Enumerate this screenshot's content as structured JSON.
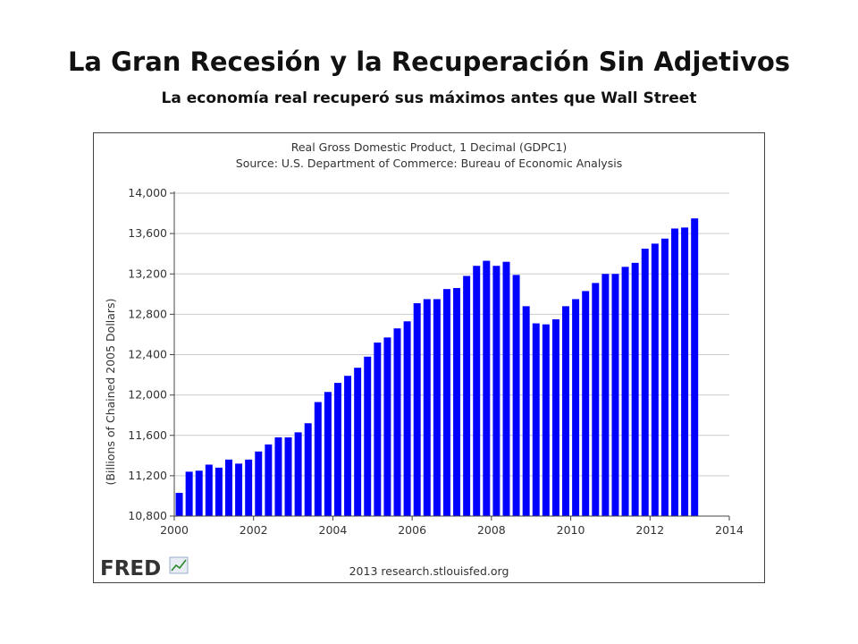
{
  "slide": {
    "title": "La Gran Recesión y la Recuperación Sin Adjetivos",
    "subtitle": "La economía real recuperó sus máximos antes que Wall Street"
  },
  "chart_data": {
    "type": "bar",
    "title": "Real Gross Domestic Product, 1 Decimal (GDPC1)",
    "subtitle": "Source: U.S. Department of Commerce: Bureau of Economic Analysis",
    "ylabel": "(Billions of Chained 2005 Dollars)",
    "xlabel": "",
    "ylim": [
      10800,
      14000
    ],
    "xlim": [
      2000,
      2014
    ],
    "yticks": [
      "10,800",
      "11,200",
      "11,600",
      "12,000",
      "12,400",
      "12,800",
      "13,200",
      "13,600",
      "14,000"
    ],
    "xticks": [
      "2000",
      "2002",
      "2004",
      "2006",
      "2008",
      "2010",
      "2012",
      "2014"
    ],
    "grid": true,
    "bar_color": "#0000ff",
    "categories": [
      "2000-Q1",
      "2000-Q2",
      "2000-Q3",
      "2000-Q4",
      "2001-Q1",
      "2001-Q2",
      "2001-Q3",
      "2001-Q4",
      "2002-Q1",
      "2002-Q2",
      "2002-Q3",
      "2002-Q4",
      "2003-Q1",
      "2003-Q2",
      "2003-Q3",
      "2003-Q4",
      "2004-Q1",
      "2004-Q2",
      "2004-Q3",
      "2004-Q4",
      "2005-Q1",
      "2005-Q2",
      "2005-Q3",
      "2005-Q4",
      "2006-Q1",
      "2006-Q2",
      "2006-Q3",
      "2006-Q4",
      "2007-Q1",
      "2007-Q2",
      "2007-Q3",
      "2007-Q4",
      "2008-Q1",
      "2008-Q2",
      "2008-Q3",
      "2008-Q4",
      "2009-Q1",
      "2009-Q2",
      "2009-Q3",
      "2009-Q4",
      "2010-Q1",
      "2010-Q2",
      "2010-Q3",
      "2010-Q4",
      "2011-Q1",
      "2011-Q2",
      "2011-Q3",
      "2011-Q4",
      "2012-Q1",
      "2012-Q2",
      "2012-Q3",
      "2012-Q4",
      "2013-Q1"
    ],
    "values": [
      11030,
      11240,
      11250,
      11310,
      11280,
      11360,
      11320,
      11360,
      11440,
      11510,
      11580,
      11580,
      11630,
      11720,
      11930,
      12030,
      12120,
      12190,
      12270,
      12380,
      12520,
      12570,
      12660,
      12730,
      12910,
      12950,
      12950,
      13050,
      13060,
      13180,
      13280,
      13330,
      13280,
      13320,
      13190,
      12880,
      12710,
      12700,
      12750,
      12880,
      12950,
      13030,
      13110,
      13200,
      13200,
      13270,
      13310,
      13450,
      13500,
      13550,
      13650,
      13660,
      13750
    ]
  },
  "footer": {
    "logo": "FRED",
    "logo_icon": "chart-line-icon",
    "credit": "2013 research.stlouisfed.org"
  }
}
